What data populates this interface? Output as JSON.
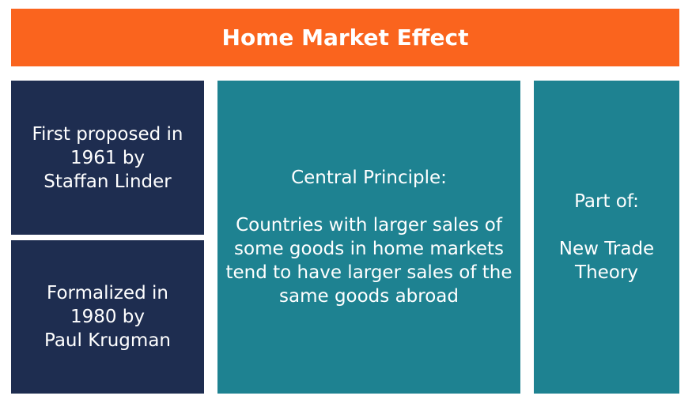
{
  "title": "Home Market Effect",
  "colors": {
    "title_bg": "#fa641e",
    "dark_bg": "#1e2d50",
    "teal_bg": "#1e8291",
    "text": "#ffffff"
  },
  "boxes": {
    "proposed": {
      "lines": [
        "First proposed in",
        "1961 by",
        "Staffan Linder"
      ]
    },
    "formalized": {
      "lines": [
        "Formalized in",
        "1980 by",
        "Paul Krugman"
      ]
    },
    "principle": {
      "heading": "Central Principle:",
      "lines": [
        "Countries with larger sales of",
        "some goods in home markets",
        "tend to have larger sales of the",
        "same goods abroad"
      ]
    },
    "partof": {
      "heading": "Part of:",
      "lines": [
        "New Trade",
        "Theory"
      ]
    }
  }
}
